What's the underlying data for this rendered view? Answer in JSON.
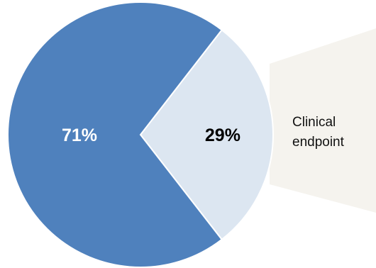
{
  "chart_data": {
    "type": "pie",
    "slices": [
      {
        "label": "",
        "value": 71,
        "display": "71%",
        "color": "#4f81bd"
      },
      {
        "label": "Clinical endpoint",
        "value": 29,
        "display": "29%",
        "color": "#dce6f1"
      }
    ],
    "label_lines": [
      "Clinical",
      "endpoint"
    ],
    "callout_color": "#f5f3ee",
    "title": "",
    "legend": "none"
  }
}
